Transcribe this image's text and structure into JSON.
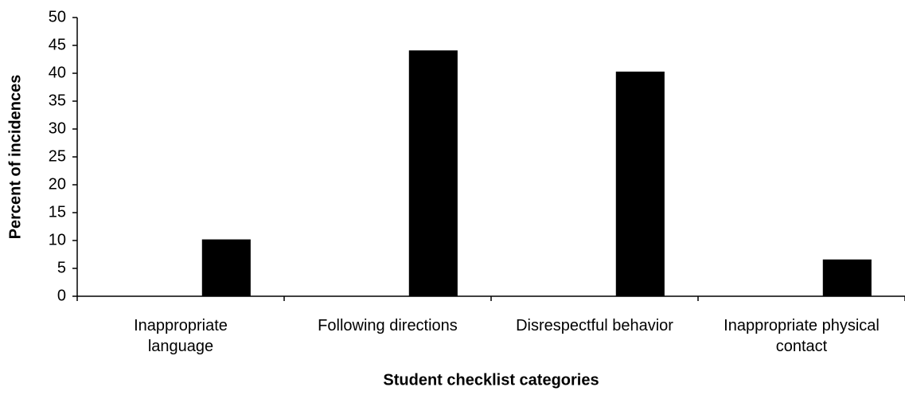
{
  "chart_data": {
    "type": "bar",
    "categories": [
      "Inappropriate\nlanguage",
      "Following directions",
      "Disrespectful behavior",
      "Inappropriate physical\ncontact"
    ],
    "values": [
      10.2,
      44.1,
      40.3,
      6.6
    ],
    "color": "#000000",
    "ylim": [
      0,
      50
    ],
    "yticks": [
      0,
      5,
      10,
      15,
      20,
      25,
      30,
      35,
      40,
      45,
      50
    ],
    "x_label": "Student checklist categories",
    "y_label": "Percent of incidences"
  }
}
